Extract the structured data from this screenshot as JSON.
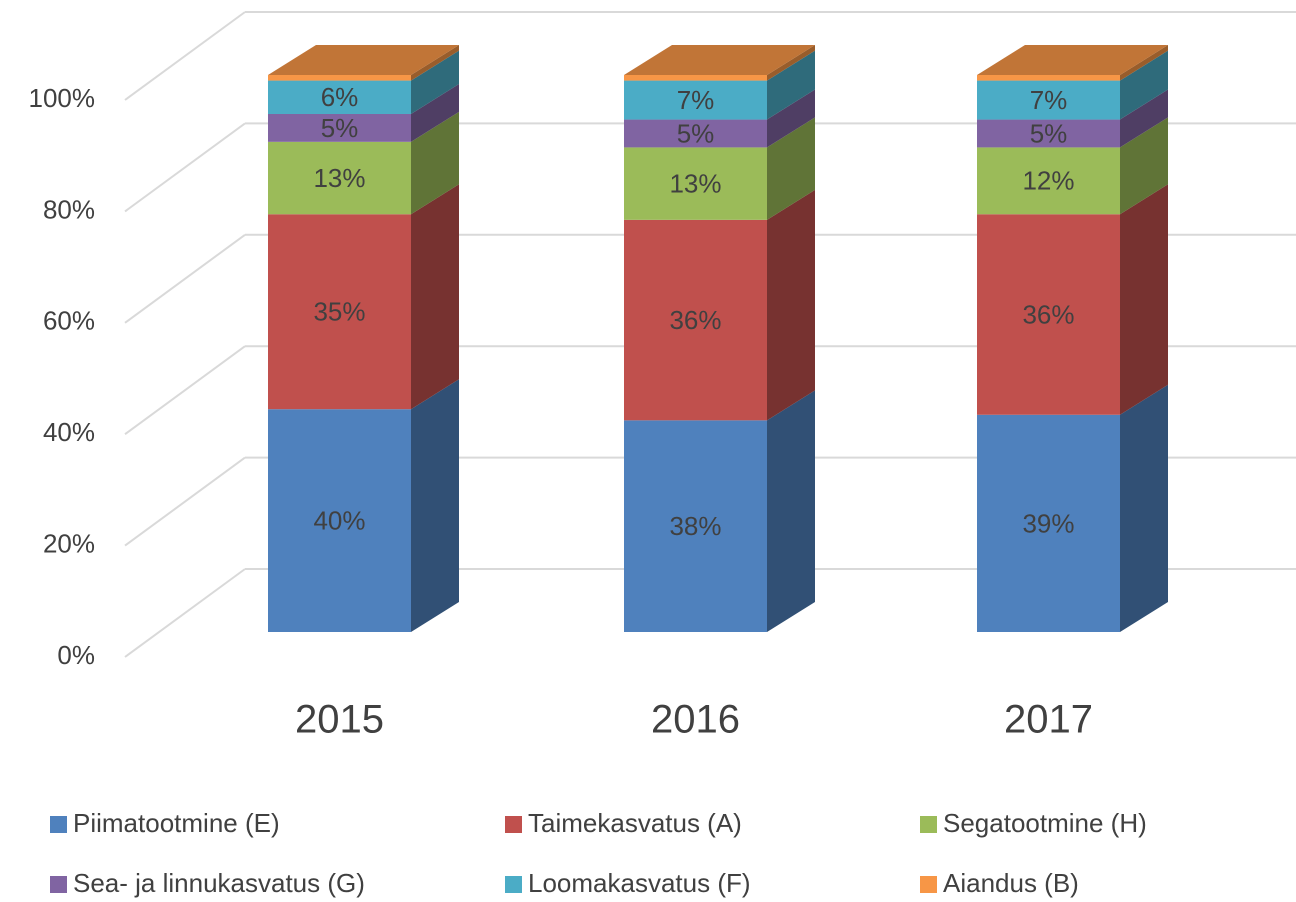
{
  "chart_data": {
    "type": "bar3d_stacked",
    "categories": [
      "2015",
      "2016",
      "2017"
    ],
    "series": [
      {
        "name": "Piimatootmine (E)",
        "color": "#4f81bd",
        "values": [
          40,
          38,
          39
        ],
        "value_labels": [
          "40%",
          "38%",
          "39%"
        ]
      },
      {
        "name": "Taimekasvatus (A)",
        "color": "#c0504d",
        "values": [
          35,
          36,
          36
        ],
        "value_labels": [
          "35%",
          "36%",
          "36%"
        ]
      },
      {
        "name": "Segatootmine (H)",
        "color": "#9bbb59",
        "values": [
          13,
          13,
          12
        ],
        "value_labels": [
          "13%",
          "13%",
          "12%"
        ]
      },
      {
        "name": "Sea- ja linnukasvatus (G)",
        "color": "#8064a2",
        "values": [
          5,
          5,
          5
        ],
        "value_labels": [
          "5%",
          "5%",
          "5%"
        ]
      },
      {
        "name": "Loomakasvatus (F)",
        "color": "#4bacc6",
        "values": [
          6,
          7,
          7
        ],
        "value_labels": [
          "6%",
          "7%",
          "7%"
        ]
      },
      {
        "name": "Aiandus (B)",
        "color": "#f79646",
        "values": [
          1,
          1,
          1
        ]
      }
    ],
    "ylim": [
      0,
      100
    ],
    "yticks": [
      {
        "value": 0,
        "label": "0%"
      },
      {
        "value": 20,
        "label": "20%"
      },
      {
        "value": 40,
        "label": "40%"
      },
      {
        "value": 60,
        "label": "60%"
      },
      {
        "value": 80,
        "label": "80%"
      },
      {
        "value": 100,
        "label": "100%"
      }
    ],
    "grid": true
  }
}
